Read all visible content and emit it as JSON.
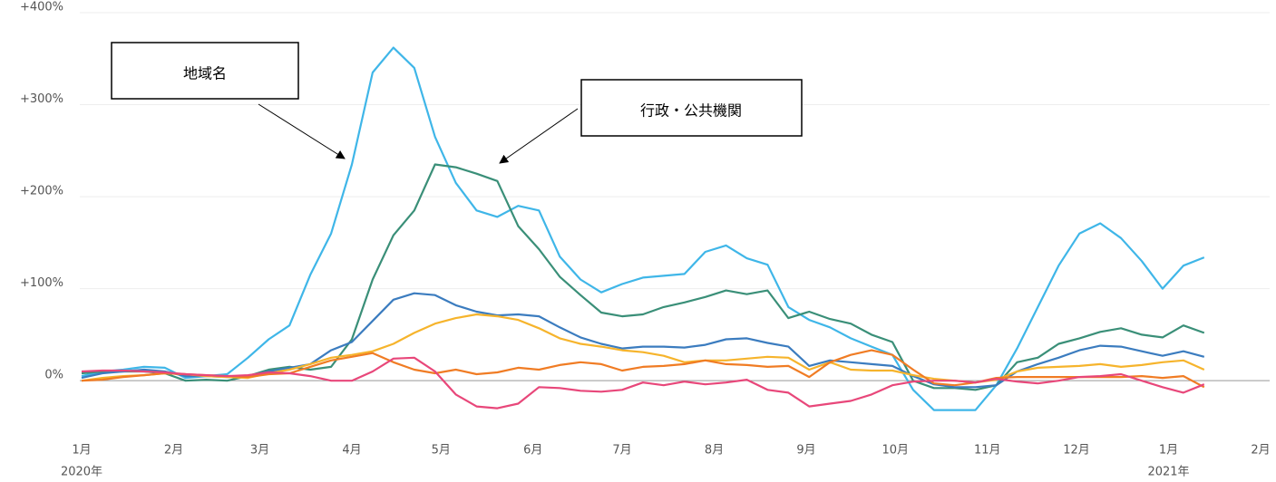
{
  "chart_data": {
    "type": "line",
    "annotations": [
      "地域名",
      "行政・公共機関"
    ],
    "x": [
      0,
      7,
      14,
      21,
      28,
      35,
      42,
      49,
      56,
      63,
      70,
      77,
      84,
      91,
      98,
      105,
      112,
      119,
      126,
      133,
      140,
      147,
      154,
      161,
      168,
      175,
      182,
      189,
      196,
      203,
      210,
      217,
      224,
      231,
      238,
      245,
      252,
      259,
      266,
      273,
      280,
      287,
      294,
      301,
      308,
      315,
      322,
      329,
      336,
      343,
      350,
      357,
      364,
      371,
      378
    ],
    "series": [
      {
        "color": "#3fb6e8",
        "values": [
          5,
          10,
          12,
          15,
          14,
          3,
          5,
          7,
          25,
          45,
          60,
          115,
          160,
          235,
          335,
          362,
          340,
          265,
          215,
          185,
          178,
          190,
          185,
          135,
          110,
          96,
          105,
          112,
          114,
          116,
          140,
          147,
          133,
          126,
          80,
          66,
          58,
          46,
          37,
          28,
          -10,
          -32,
          -32,
          -32,
          -5,
          35,
          80,
          125,
          160,
          171,
          155,
          130,
          100,
          125,
          134
        ]
      },
      {
        "color": "#3a8f78",
        "values": [
          8,
          10,
          10,
          10,
          8,
          0,
          1,
          0,
          5,
          12,
          15,
          12,
          15,
          45,
          110,
          158,
          185,
          235,
          232,
          225,
          217,
          168,
          143,
          113,
          93,
          74,
          70,
          72,
          80,
          85,
          91,
          98,
          94,
          98,
          68,
          75,
          67,
          62,
          50,
          42,
          0,
          -8,
          -8,
          -10,
          -5,
          20,
          25,
          40,
          46,
          53,
          57,
          50,
          47,
          60,
          52
        ]
      },
      {
        "color": "#3b7cbf",
        "values": [
          3,
          8,
          10,
          12,
          10,
          5,
          5,
          4,
          5,
          10,
          14,
          18,
          33,
          42,
          65,
          88,
          95,
          93,
          82,
          75,
          71,
          72,
          70,
          58,
          47,
          40,
          35,
          37,
          37,
          36,
          39,
          45,
          46,
          41,
          37,
          16,
          22,
          20,
          18,
          16,
          5,
          -4,
          -7,
          -7,
          -5,
          10,
          18,
          25,
          33,
          38,
          37,
          32,
          27,
          32,
          26
        ]
      },
      {
        "color": "#f6b42c",
        "values": [
          0,
          3,
          5,
          6,
          8,
          7,
          5,
          4,
          3,
          8,
          12,
          18,
          25,
          28,
          32,
          40,
          52,
          62,
          68,
          72,
          70,
          66,
          57,
          46,
          40,
          37,
          33,
          31,
          27,
          20,
          22,
          22,
          24,
          26,
          25,
          12,
          20,
          12,
          11,
          11,
          6,
          2,
          0,
          -2,
          1,
          10,
          14,
          15,
          16,
          18,
          15,
          17,
          20,
          22,
          12
        ]
      },
      {
        "color": "#f07c24",
        "values": [
          0,
          1,
          4,
          6,
          8,
          7,
          6,
          5,
          4,
          7,
          8,
          15,
          22,
          26,
          30,
          20,
          12,
          8,
          12,
          7,
          9,
          14,
          12,
          17,
          20,
          18,
          11,
          15,
          16,
          18,
          22,
          18,
          17,
          15,
          16,
          4,
          20,
          28,
          33,
          28,
          12,
          -3,
          -5,
          -2,
          3,
          4,
          4,
          4,
          4,
          4,
          4,
          5,
          3,
          5,
          -7
        ]
      },
      {
        "color": "#e8477a",
        "values": [
          10,
          11,
          11,
          10,
          9,
          7,
          6,
          5,
          6,
          9,
          8,
          5,
          0,
          0,
          10,
          24,
          25,
          10,
          -15,
          -28,
          -30,
          -25,
          -7,
          -8,
          -11,
          -12,
          -10,
          -2,
          -5,
          -1,
          -4,
          -2,
          1,
          -10,
          -13,
          -28,
          -25,
          -22,
          -15,
          -5,
          -1,
          0,
          0,
          -2,
          2,
          -1,
          -3,
          0,
          4,
          5,
          7,
          0,
          -7,
          -13,
          -4
        ]
      }
    ],
    "xlim": [
      0,
      397
    ],
    "xticks": [
      {
        "value": 0,
        "label": "1月"
      },
      {
        "value": 31,
        "label": "2月"
      },
      {
        "value": 60,
        "label": "3月"
      },
      {
        "value": 91,
        "label": "4月"
      },
      {
        "value": 121,
        "label": "5月"
      },
      {
        "value": 152,
        "label": "6月"
      },
      {
        "value": 182,
        "label": "7月"
      },
      {
        "value": 213,
        "label": "8月"
      },
      {
        "value": 244,
        "label": "9月"
      },
      {
        "value": 274,
        "label": "10月"
      },
      {
        "value": 305,
        "label": "11月"
      },
      {
        "value": 335,
        "label": "12月"
      },
      {
        "value": 366,
        "label": "1月"
      },
      {
        "value": 397,
        "label": "2月"
      }
    ],
    "x_year_labels": [
      {
        "value": 0,
        "label": "2020年"
      },
      {
        "value": 366,
        "label": "2021年"
      }
    ],
    "ylim": [
      -55,
      400
    ],
    "yticks": [
      {
        "value": 400,
        "label": "+400%"
      },
      {
        "value": 300,
        "label": "+300%"
      },
      {
        "value": 200,
        "label": "+200%"
      },
      {
        "value": 100,
        "label": "+100%"
      },
      {
        "value": 0,
        "label": "0%"
      }
    ],
    "grid": true
  }
}
